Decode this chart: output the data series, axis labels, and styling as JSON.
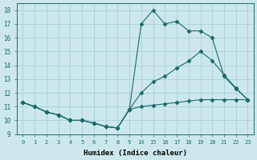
{
  "xlabel": "Humidex (Indice chaleur)",
  "ylabel": "",
  "bg_color": "#cce8ec",
  "line_color": "#1a6b6b",
  "grid_color": "#aed4d8",
  "ylim": [
    9,
    18.5
  ],
  "xtick_labels": [
    "0",
    "1",
    "2",
    "3",
    "4",
    "5",
    "6",
    "7",
    "8",
    "9",
    "14",
    "15",
    "16",
    "17",
    "18",
    "19",
    "20",
    "21",
    "22",
    "23"
  ],
  "yticks": [
    9,
    10,
    11,
    12,
    13,
    14,
    15,
    16,
    17,
    18
  ],
  "lines": [
    {
      "xi": [
        0,
        1,
        2,
        3,
        4,
        5,
        6,
        7,
        8,
        9,
        10,
        11,
        12,
        13,
        14,
        15,
        16,
        17,
        18,
        19
      ],
      "y": [
        11.3,
        11.0,
        10.6,
        10.4,
        10.0,
        10.0,
        9.8,
        9.55,
        9.45,
        10.8,
        17.0,
        18.0,
        17.0,
        17.2,
        16.5,
        16.5,
        16.0,
        13.2,
        12.3,
        11.5
      ]
    },
    {
      "xi": [
        0,
        1,
        2,
        3,
        4,
        5,
        6,
        7,
        8,
        9,
        10,
        11,
        12,
        13,
        14,
        15,
        16,
        17,
        18,
        19
      ],
      "y": [
        11.3,
        11.0,
        10.6,
        10.4,
        10.0,
        10.0,
        9.8,
        9.55,
        9.45,
        10.8,
        12.0,
        12.8,
        13.2,
        13.8,
        14.3,
        15.0,
        14.35,
        13.3,
        12.35,
        11.5
      ]
    },
    {
      "xi": [
        0,
        1,
        2,
        3,
        4,
        5,
        6,
        7,
        8,
        9,
        10,
        11,
        12,
        13,
        14,
        15,
        16,
        17,
        18,
        19
      ],
      "y": [
        11.3,
        11.0,
        10.6,
        10.4,
        10.0,
        10.0,
        9.8,
        9.55,
        9.45,
        10.8,
        11.0,
        11.1,
        11.2,
        11.3,
        11.4,
        11.5,
        11.5,
        11.5,
        11.5,
        11.5
      ]
    }
  ],
  "marker": "D",
  "markersize": 2.5
}
